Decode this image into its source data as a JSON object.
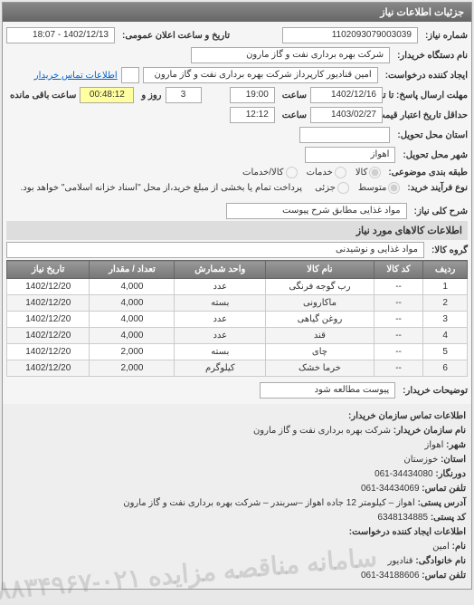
{
  "panel": {
    "title": "جزئیات اطلاعات نیاز"
  },
  "header": {
    "req_no_label": "شماره نیاز:",
    "req_no": "1102093079003039",
    "announce_label": "تاریخ و ساعت اعلان عمومی:",
    "announce_value": "1402/12/13 - 18:07",
    "buyer_label": "نام دستگاه خریدار:",
    "buyer_value": "شرکت بهره برداری نفت و گاز مارون",
    "creator_label": "ایجاد کننده درخواست:",
    "creator_value": "امین قنادیور کارپرداز شرکت بهره برداری نفت و گاز مارون",
    "contact_link": "اطلاعات تماس خریدار",
    "deadline_label": "مهلت ارسال پاسخ: تا تاریخ:",
    "deadline_date": "1402/12/16",
    "time_label": "ساعت",
    "deadline_time": "19:00",
    "days_label": "روز و",
    "days_value": "3",
    "remain_label": "ساعت باقی مانده",
    "remain_value": "00:48:12",
    "validity_label": "حداقل تاریخ اعتبار قیمت: تا تاریخ:",
    "validity_date": "1403/02/27",
    "validity_time": "12:12",
    "province_label": "استان محل تحویل:",
    "city_label": "شهر محل تحویل:",
    "city_value": "اهواز",
    "category_label": "طبقه بندی موضوعی:",
    "priority_label": "نوع فرآیند خرید:",
    "cat_options": {
      "kala": "کالا",
      "khadmat": "خدمات",
      "kalakhadmat": "کالا/خدمات"
    },
    "prio_options": {
      "motavaset": "متوسط",
      "jozi": "جزئی"
    },
    "payment_note": "پرداخت تمام یا بخشی از مبلغ خرید،از محل \"اسناد خزانه اسلامی\" خواهد بود."
  },
  "need": {
    "title_label": "شرح کلی نیاز:",
    "title_value": "مواد غذایی مطابق شرح پیوست"
  },
  "goods_section": "اطلاعات کالاهای مورد نیاز",
  "group": {
    "label": "گروه کالا:",
    "value": "مواد غذایی و نوشیدنی"
  },
  "table": {
    "columns": [
      "ردیف",
      "کد کالا",
      "نام کالا",
      "واحد شمارش",
      "تعداد / مقدار",
      "تاریخ نیاز"
    ],
    "rows": [
      [
        "1",
        "--",
        "رب گوجه فرنگی",
        "عدد",
        "4,000",
        "1402/12/20"
      ],
      [
        "2",
        "--",
        "ماکارونی",
        "بسته",
        "4,000",
        "1402/12/20"
      ],
      [
        "3",
        "--",
        "روغن گیاهی",
        "عدد",
        "4,000",
        "1402/12/20"
      ],
      [
        "4",
        "--",
        "قند",
        "عدد",
        "4,000",
        "1402/12/20"
      ],
      [
        "5",
        "--",
        "چای",
        "بسته",
        "2,000",
        "1402/12/20"
      ],
      [
        "6",
        "--",
        "خرما خشک",
        "کیلوگرم",
        "2,000",
        "1402/12/20"
      ]
    ]
  },
  "buyer_note": {
    "label": "توضیحات خریدار:",
    "value": "پیوست مطالعه شود"
  },
  "footer": {
    "contact_title": "اطلاعات تماس سازمان خریدار:",
    "org_label": "نام سازمان خریدار:",
    "org_value": "شرکت بهره برداری نفت و گاز مارون",
    "city_label": "شهر:",
    "city_value": "اهواز",
    "province_label": "استان:",
    "province_value": "خوزستان",
    "pre_phone_label": "دورنگار:",
    "pre_phone_value": "34434080-061",
    "phone_label": "تلفن تماس:",
    "phone_value": "34434069-061",
    "address_label": "آدرس پستی:",
    "address_value": "اهواز – کیلومتر 12 جاده اهواز –سربندر – شرکت بهره برداری نفت و گاز مارون",
    "postal_label": "کد پستی:",
    "postal_value": "6348134885",
    "creator_contact_title": "اطلاعات ایجاد کننده درخواست:",
    "name_label": "نام:",
    "name_value": "امین",
    "lname_label": "نام خانوادگی:",
    "lname_value": "قنادیور",
    "cphone_label": "تلفن تماس:",
    "cphone_value": "34188606-061"
  },
  "watermark": "سامانه مناقصه مزایده ۰۲۱-۸۸۳۴۹۶۷"
}
